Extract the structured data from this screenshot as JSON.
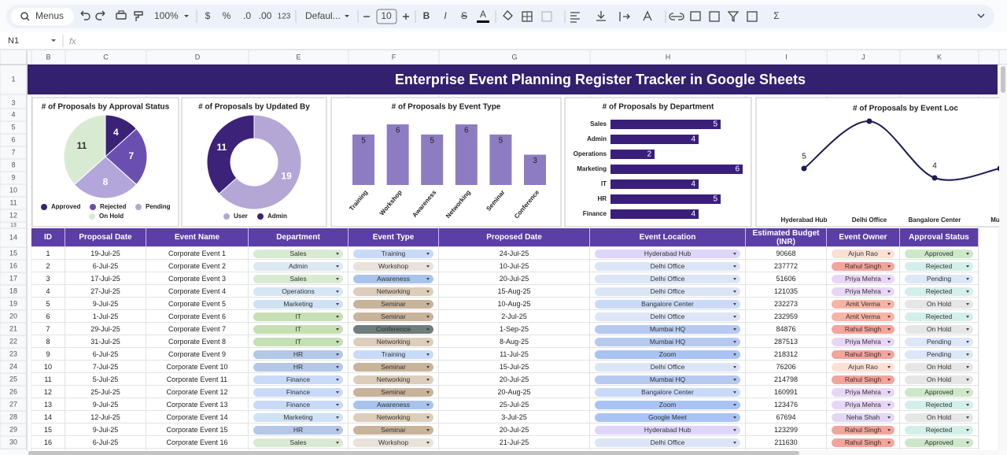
{
  "toolbar": {
    "menus": "Menus",
    "zoom": "100%",
    "currency": "$",
    "percent": "%",
    "decimal_less": ".0",
    "decimal_more": ".00",
    "number_format": "123",
    "font": "Defaul...",
    "font_size": "10",
    "bold": "B",
    "italic": "I",
    "strike": "S",
    "text_color": "A",
    "functions": "Σ"
  },
  "formula_bar": {
    "cell": "N1",
    "fx": "fx"
  },
  "sheet": {
    "columns": [
      "B",
      "C",
      "D",
      "E",
      "F",
      "G",
      "H",
      "I",
      "J",
      "K"
    ],
    "rows": [
      1,
      3,
      4,
      5,
      6,
      7,
      8,
      9,
      10,
      11,
      12,
      13,
      14,
      15,
      16,
      17,
      18,
      19,
      20,
      21,
      22,
      23,
      24,
      25,
      26,
      27,
      28,
      29,
      30
    ],
    "title": "Enterprise Event Planning Register Tracker in Google Sheets"
  },
  "chart_data": [
    {
      "type": "pie",
      "title": "# of Proposals by Approval Status",
      "categories": [
        "Approved",
        "Rejected",
        "Pending",
        "On Hold"
      ],
      "values": [
        4,
        7,
        8,
        11
      ],
      "colors": [
        "#3b2277",
        "#6b4fb0",
        "#b3a6da",
        "#d9ead3"
      ]
    },
    {
      "type": "donut",
      "title": "# of Proposals by Updated By",
      "categories": [
        "User",
        "Admin"
      ],
      "values": [
        19,
        11
      ],
      "colors": [
        "#b4a7d6",
        "#3c2278"
      ]
    },
    {
      "type": "bar",
      "title": "# of Proposals by Event Type",
      "categories": [
        "Training",
        "Workshop",
        "Awareness",
        "Networking",
        "Seminar",
        "Conference"
      ],
      "values": [
        5,
        6,
        5,
        6,
        5,
        3
      ],
      "color": "#8e7cc3"
    },
    {
      "type": "barh",
      "title": "# of Proposals by Department",
      "categories": [
        "Sales",
        "Admin",
        "Operations",
        "Marketing",
        "IT",
        "HR",
        "Finance"
      ],
      "values": [
        5,
        4,
        2,
        6,
        4,
        5,
        4
      ],
      "color": "#3a1f7a"
    },
    {
      "type": "line",
      "title": "# of Proposals by Event Loc",
      "categories": [
        "Hyderabad Hub",
        "Delhi Office",
        "Bangalore Center",
        "Mumb"
      ],
      "values": [
        5,
        10,
        4,
        5
      ],
      "value_labels": [
        "5",
        null,
        "4",
        null
      ],
      "color": "#1c1c54"
    }
  ],
  "table": {
    "header": [
      "ID",
      "Proposal Date",
      "Event Name",
      "Department",
      "Event Type",
      "Proposed Date",
      "Event Location",
      "Estimated Budget (INR)",
      "Event Owner",
      "Approval Status"
    ],
    "rows": [
      [
        1,
        "19-Jul-25",
        "Corporate Event 1",
        "Sales",
        "Training",
        "24-Jul-25",
        "Hyderabad Hub",
        90668,
        "Arjun Rao",
        "Approved"
      ],
      [
        2,
        "6-Jul-25",
        "Corporate Event 2",
        "Admin",
        "Workshop",
        "10-Jul-25",
        "Delhi Office",
        237772,
        "Rahul Singh",
        "Rejected"
      ],
      [
        3,
        "17-Jul-25",
        "Corporate Event 3",
        "Sales",
        "Awareness",
        "20-Jul-25",
        "Delhi Office",
        51606,
        "Priya Mehra",
        "Pending"
      ],
      [
        4,
        "27-Jul-25",
        "Corporate Event 4",
        "Operations",
        "Networking",
        "15-Aug-25",
        "Delhi Office",
        121035,
        "Priya Mehra",
        "Rejected"
      ],
      [
        5,
        "9-Jul-25",
        "Corporate Event 5",
        "Marketing",
        "Seminar",
        "10-Aug-25",
        "Bangalore Center",
        232273,
        "Amit Verma",
        "On Hold"
      ],
      [
        6,
        "1-Jul-25",
        "Corporate Event 6",
        "IT",
        "Seminar",
        "2-Jul-25",
        "Delhi Office",
        232959,
        "Amit Verma",
        "Rejected"
      ],
      [
        7,
        "29-Jul-25",
        "Corporate Event 7",
        "IT",
        "Conference",
        "1-Sep-25",
        "Mumbai HQ",
        84876,
        "Rahul Singh",
        "On Hold"
      ],
      [
        8,
        "31-Jul-25",
        "Corporate Event 8",
        "IT",
        "Networking",
        "8-Aug-25",
        "Mumbai HQ",
        287513,
        "Priya Mehra",
        "Pending"
      ],
      [
        9,
        "6-Jul-25",
        "Corporate Event 9",
        "HR",
        "Training",
        "11-Jul-25",
        "Zoom",
        218312,
        "Rahul Singh",
        "Pending"
      ],
      [
        10,
        "7-Jul-25",
        "Corporate Event 10",
        "HR",
        "Seminar",
        "15-Jul-25",
        "Delhi Office",
        76206,
        "Arjun Rao",
        "On Hold"
      ],
      [
        11,
        "5-Jul-25",
        "Corporate Event 11",
        "Finance",
        "Networking",
        "20-Jul-25",
        "Mumbai HQ",
        214798,
        "Rahul Singh",
        "On Hold"
      ],
      [
        12,
        "25-Jul-25",
        "Corporate Event 12",
        "Finance",
        "Seminar",
        "20-Aug-25",
        "Bangalore Center",
        160991,
        "Priya Mehra",
        "Approved"
      ],
      [
        13,
        "9-Jul-25",
        "Corporate Event 13",
        "Finance",
        "Awareness",
        "25-Jul-25",
        "Zoom",
        123476,
        "Priya Mehra",
        "Rejected"
      ],
      [
        14,
        "12-Jul-25",
        "Corporate Event 14",
        "Marketing",
        "Networking",
        "3-Jul-25",
        "Google Meet",
        67694,
        "Neha Shah",
        "On Hold"
      ],
      [
        15,
        "9-Jul-25",
        "Corporate Event 15",
        "HR",
        "Seminar",
        "20-Jul-25",
        "Hyderabad Hub",
        123299,
        "Rahul Singh",
        "Rejected"
      ],
      [
        16,
        "6-Jul-25",
        "Corporate Event 16",
        "Sales",
        "Workshop",
        "21-Jul-25",
        "Delhi Office",
        211630,
        "Rahul Singh",
        "Approved"
      ]
    ],
    "chip_columns": [
      {
        "column": 3,
        "colors": {
          "Sales": "#d9ead3",
          "Admin": "#dde8f3",
          "Operations": "#d6e6f5",
          "Marketing": "#cfe2f3",
          "IT": "#c5e0b4",
          "HR": "#b4c7e7",
          "Finance": "#c9daf8"
        }
      },
      {
        "column": 4,
        "colors": {
          "Training": "#c9daf8",
          "Workshop": "#e8e2da",
          "Awareness": "#a9c4ec",
          "Networking": "#ddcdbb",
          "Seminar": "#c8b39b",
          "Conference": "#6f7d7c"
        }
      },
      {
        "column": 6,
        "colors": {
          "Hyderabad Hub": "#ddd5fa",
          "Delhi Office": "#dce5f6",
          "Bangalore Center": "#c9daf8",
          "Mumbai HQ": "#b6c9f1",
          "Zoom": "#a9c4f4",
          "Google Meet": "#a9c4f4"
        }
      },
      {
        "column": 8,
        "colors": {
          "Arjun Rao": "#fbe0d4",
          "Rahul Singh": "#f4a49a",
          "Priya Mehra": "#e8d6f6",
          "Amit Verma": "#f7b3a3",
          "Neha Shah": "#e3d7f6"
        }
      },
      {
        "column": 9,
        "colors": {
          "Approved": "#cde8c9",
          "Rejected": "#d3efe9",
          "Pending": "#dce7f7",
          "On Hold": "#e6e6e6"
        }
      }
    ]
  }
}
